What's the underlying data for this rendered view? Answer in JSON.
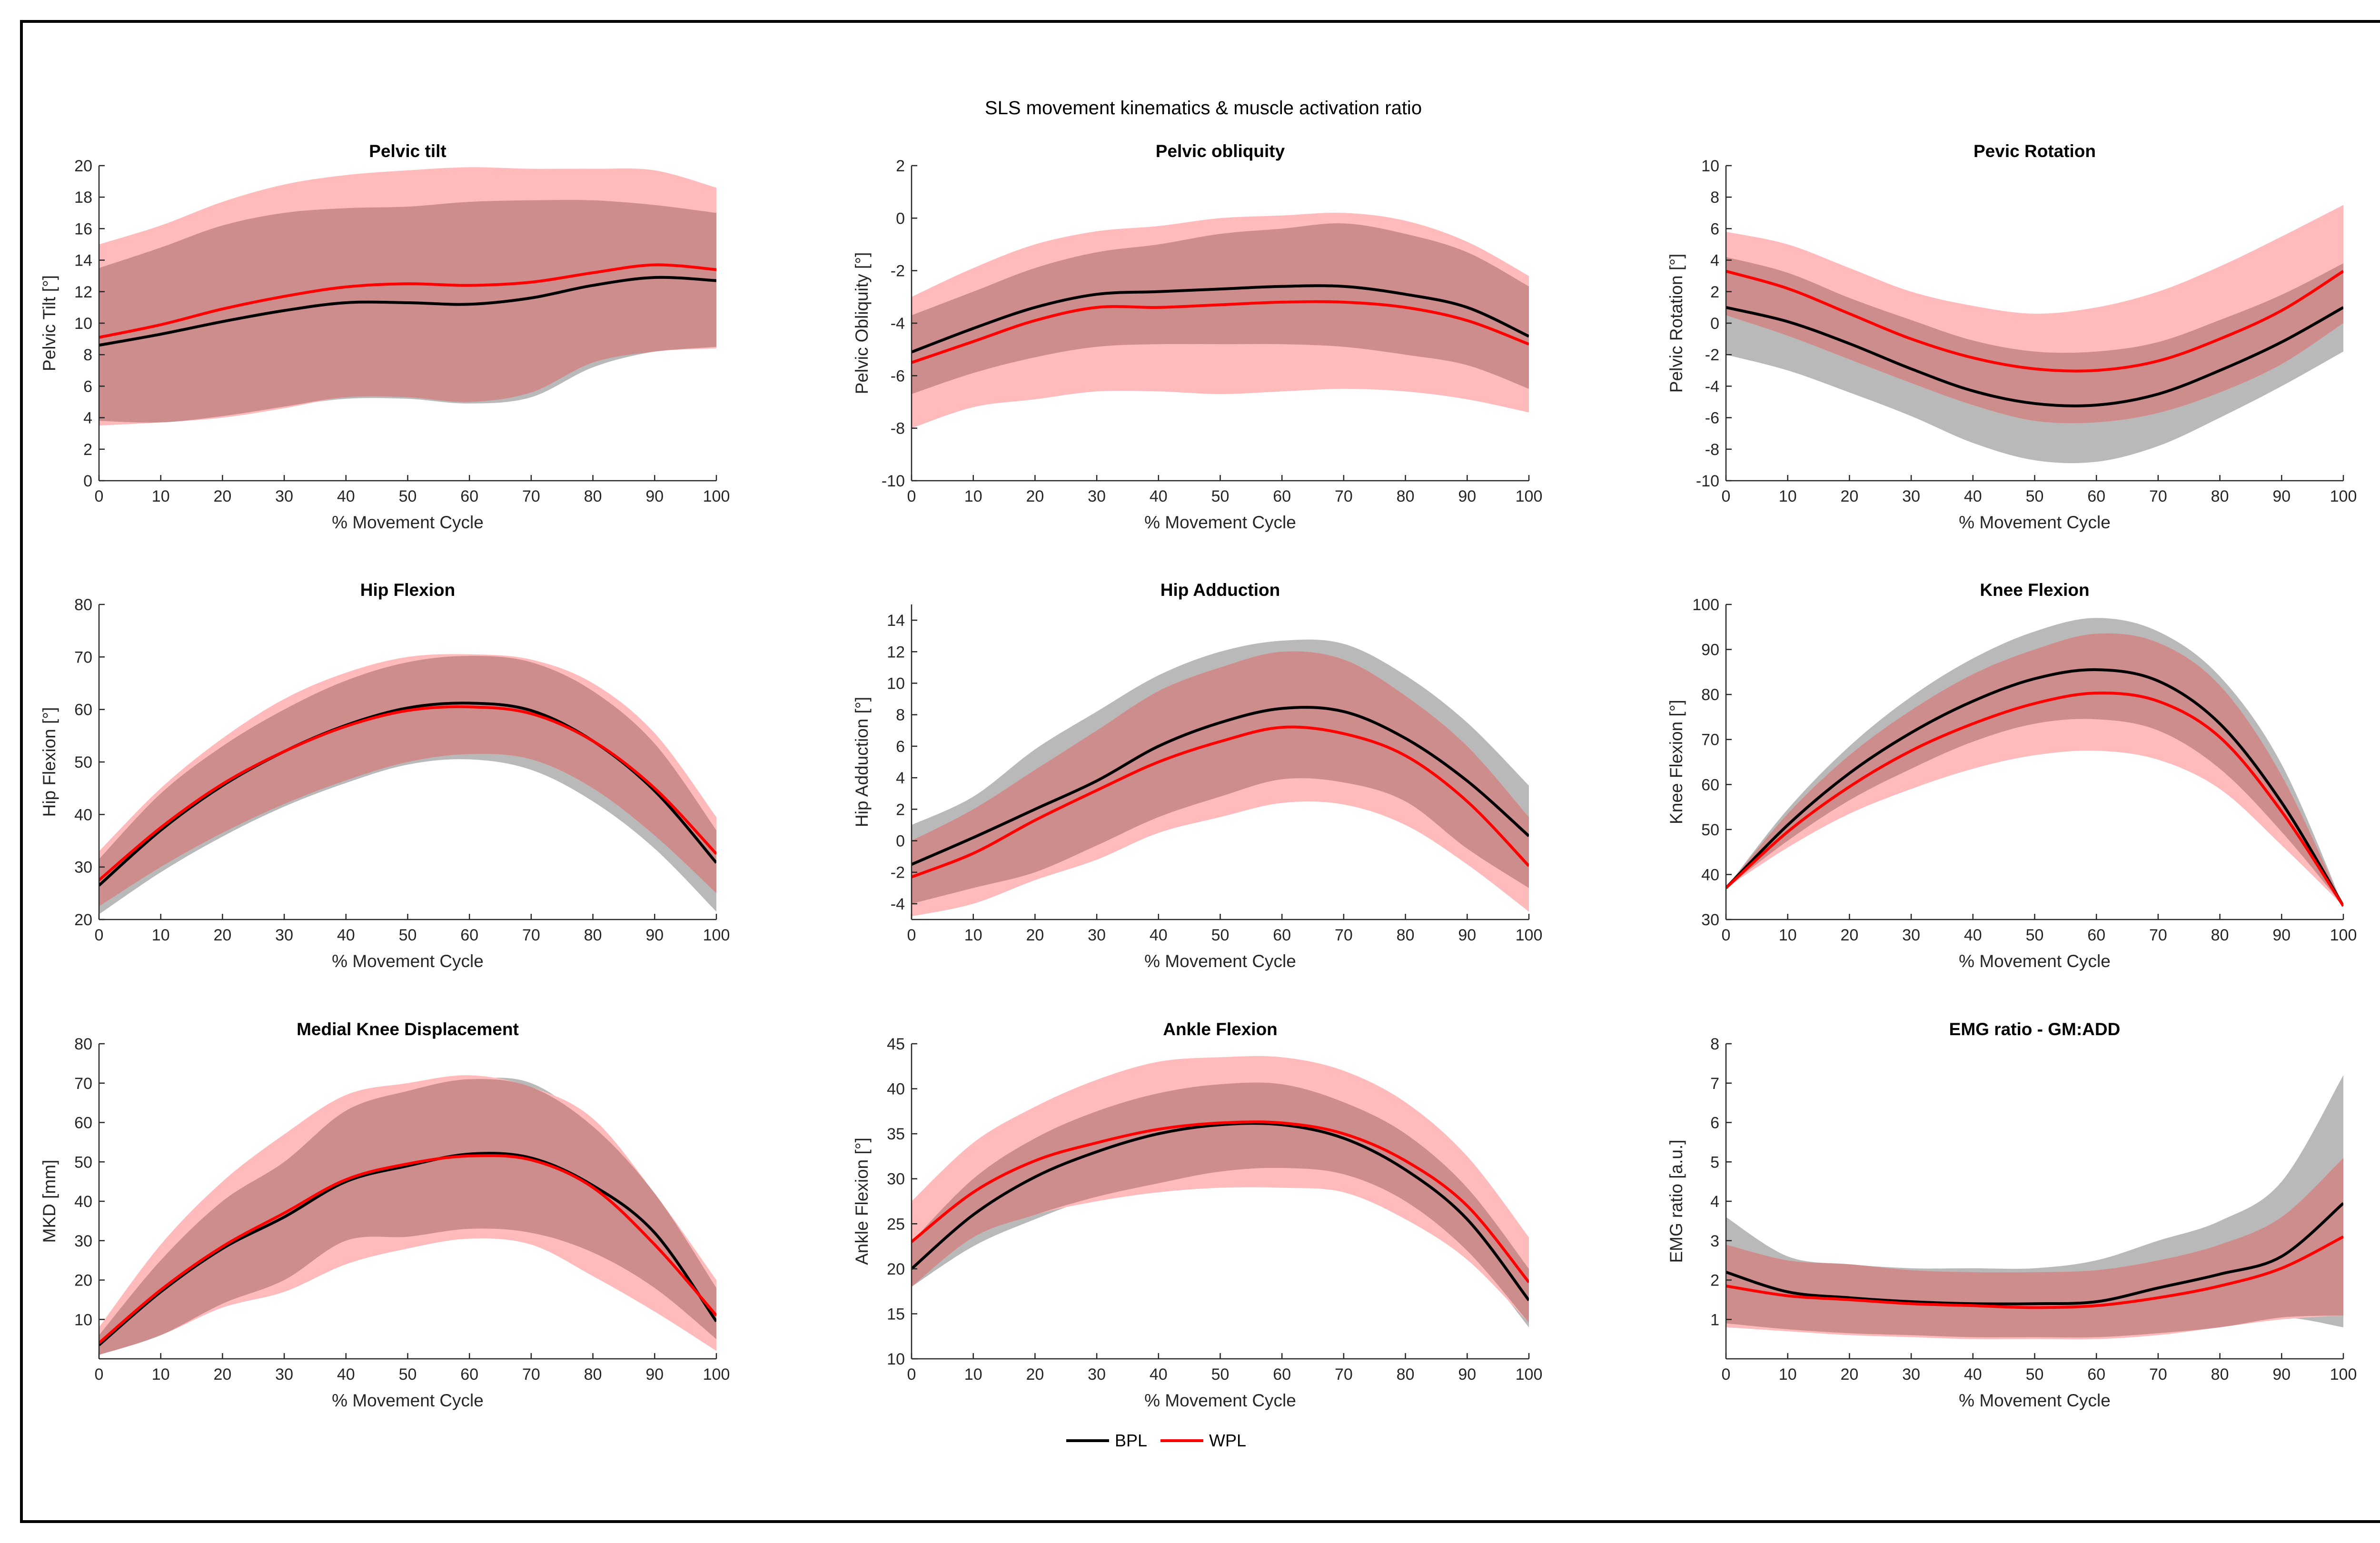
{
  "figure": {
    "title": "SLS movement kinematics & muscle activation ratio",
    "colors": {
      "bpl_line": "#000000",
      "wpl_line": "#ff0000",
      "bpl_band": "#b9b9b9",
      "wpl_band": "#ffbbbb",
      "overlap": "#cd8d8d"
    },
    "legend": [
      {
        "label": "BPL",
        "color": "#000000"
      },
      {
        "label": "WPL",
        "color": "#ff0000"
      }
    ]
  },
  "chart_data": [
    {
      "type": "line",
      "title": "Pelvic tilt",
      "xlabel": "% Movement Cycle",
      "ylabel": "Pelvic Tilt [°]",
      "xlim": [
        0,
        100
      ],
      "ylim": [
        0,
        20
      ],
      "xticks": [
        0,
        10,
        20,
        30,
        40,
        50,
        60,
        70,
        80,
        90,
        100
      ],
      "yticks": [
        0,
        2,
        4,
        6,
        8,
        10,
        12,
        14,
        16,
        18,
        20
      ],
      "x": [
        0,
        10,
        20,
        30,
        40,
        50,
        60,
        70,
        80,
        90,
        100
      ],
      "series": [
        {
          "name": "BPL",
          "mean": [
            8.6,
            9.3,
            10.1,
            10.8,
            11.3,
            11.3,
            11.2,
            11.6,
            12.4,
            12.9,
            12.7
          ],
          "lower": [
            3.8,
            3.7,
            4.1,
            4.7,
            5.2,
            5.2,
            4.9,
            5.3,
            7.2,
            8.2,
            8.5
          ],
          "upper": [
            13.5,
            14.8,
            16.2,
            17.0,
            17.3,
            17.4,
            17.7,
            17.8,
            17.8,
            17.5,
            17.0
          ]
        },
        {
          "name": "WPL",
          "mean": [
            9.1,
            9.9,
            10.9,
            11.7,
            12.3,
            12.5,
            12.4,
            12.6,
            13.2,
            13.7,
            13.4
          ],
          "lower": [
            3.5,
            3.7,
            4.0,
            4.6,
            5.3,
            5.3,
            5.0,
            5.6,
            7.5,
            8.2,
            8.4
          ],
          "upper": [
            15.0,
            16.2,
            17.7,
            18.8,
            19.4,
            19.7,
            19.9,
            19.8,
            19.8,
            19.7,
            18.6
          ]
        }
      ]
    },
    {
      "type": "line",
      "title": "Pelvic obliquity",
      "xlabel": "% Movement Cycle",
      "ylabel": "Pelvic Obliquity [°]",
      "xlim": [
        0,
        100
      ],
      "ylim": [
        -10,
        2
      ],
      "xticks": [
        0,
        10,
        20,
        30,
        40,
        50,
        60,
        70,
        80,
        90,
        100
      ],
      "yticks": [
        -10,
        -8,
        -6,
        -4,
        -2,
        0,
        2
      ],
      "x": [
        0,
        10,
        20,
        30,
        40,
        50,
        60,
        70,
        80,
        90,
        100
      ],
      "series": [
        {
          "name": "BPL",
          "mean": [
            -5.1,
            -4.2,
            -3.4,
            -2.9,
            -2.8,
            -2.7,
            -2.6,
            -2.6,
            -2.9,
            -3.4,
            -4.5
          ],
          "lower": [
            -6.7,
            -5.9,
            -5.3,
            -4.9,
            -4.8,
            -4.8,
            -4.8,
            -4.9,
            -5.2,
            -5.6,
            -6.5
          ],
          "upper": [
            -3.7,
            -2.8,
            -1.9,
            -1.3,
            -1.0,
            -0.6,
            -0.4,
            -0.2,
            -0.6,
            -1.3,
            -2.6
          ]
        },
        {
          "name": "WPL",
          "mean": [
            -5.5,
            -4.7,
            -3.9,
            -3.4,
            -3.4,
            -3.3,
            -3.2,
            -3.2,
            -3.4,
            -3.9,
            -4.8
          ],
          "lower": [
            -8.0,
            -7.2,
            -6.9,
            -6.6,
            -6.6,
            -6.7,
            -6.6,
            -6.5,
            -6.6,
            -6.9,
            -7.4
          ],
          "upper": [
            -3.0,
            -1.9,
            -1.0,
            -0.5,
            -0.3,
            0.0,
            0.1,
            0.2,
            -0.1,
            -0.9,
            -2.2
          ]
        }
      ]
    },
    {
      "type": "line",
      "title": "Pevic Rotation",
      "xlabel": "% Movement Cycle",
      "ylabel": "Pelvic Rotation [°]",
      "xlim": [
        0,
        100
      ],
      "ylim": [
        -10,
        10
      ],
      "xticks": [
        0,
        10,
        20,
        30,
        40,
        50,
        60,
        70,
        80,
        90,
        100
      ],
      "yticks": [
        -10,
        -8,
        -6,
        -4,
        -2,
        0,
        2,
        4,
        6,
        8,
        10
      ],
      "x": [
        0,
        10,
        20,
        30,
        40,
        50,
        60,
        70,
        80,
        90,
        100
      ],
      "series": [
        {
          "name": "BPL",
          "mean": [
            1.0,
            0.1,
            -1.3,
            -2.9,
            -4.3,
            -5.1,
            -5.2,
            -4.5,
            -3.0,
            -1.2,
            1.0
          ],
          "lower": [
            -2.0,
            -3.0,
            -4.4,
            -5.9,
            -7.6,
            -8.7,
            -8.8,
            -7.8,
            -6.0,
            -4.0,
            -1.8
          ],
          "upper": [
            4.2,
            3.2,
            1.6,
            0.2,
            -1.1,
            -1.8,
            -1.8,
            -1.2,
            0.2,
            1.8,
            3.8
          ]
        },
        {
          "name": "WPL",
          "mean": [
            3.3,
            2.2,
            0.6,
            -1.0,
            -2.2,
            -2.9,
            -3.0,
            -2.4,
            -1.0,
            0.8,
            3.3
          ],
          "lower": [
            0.5,
            -0.8,
            -2.3,
            -3.8,
            -5.2,
            -6.2,
            -6.3,
            -5.7,
            -4.4,
            -2.6,
            0.0
          ],
          "upper": [
            5.8,
            5.0,
            3.5,
            2.0,
            1.1,
            0.6,
            1.0,
            2.0,
            3.6,
            5.5,
            7.5
          ]
        }
      ]
    },
    {
      "type": "line",
      "title": "Hip Flexion",
      "xlabel": "% Movement Cycle",
      "ylabel": "Hip Flexion [°]",
      "xlim": [
        0,
        100
      ],
      "ylim": [
        20,
        80
      ],
      "xticks": [
        0,
        10,
        20,
        30,
        40,
        50,
        60,
        70,
        80,
        90,
        100
      ],
      "yticks": [
        20,
        30,
        40,
        50,
        60,
        70,
        80
      ],
      "x": [
        0,
        10,
        20,
        30,
        40,
        50,
        60,
        70,
        80,
        90,
        100
      ],
      "series": [
        {
          "name": "BPL",
          "mean": [
            26.5,
            37.0,
            45.5,
            52.0,
            57.0,
            60.3,
            61.2,
            59.8,
            54.0,
            44.5,
            30.8
          ],
          "lower": [
            21.0,
            29.0,
            35.8,
            41.5,
            46.0,
            49.5,
            50.5,
            48.5,
            42.5,
            33.5,
            21.5
          ],
          "upper": [
            31.5,
            44.0,
            53.0,
            60.0,
            65.5,
            69.0,
            70.2,
            69.0,
            63.5,
            53.5,
            37.0
          ]
        },
        {
          "name": "WPL",
          "mean": [
            27.5,
            37.5,
            45.8,
            52.0,
            56.8,
            59.8,
            60.5,
            59.2,
            54.0,
            45.0,
            32.5
          ],
          "lower": [
            22.5,
            30.0,
            36.5,
            42.0,
            46.5,
            50.0,
            51.5,
            50.5,
            45.0,
            36.0,
            25.0
          ],
          "upper": [
            33.0,
            45.0,
            54.5,
            62.0,
            67.0,
            70.0,
            70.5,
            69.5,
            65.0,
            55.5,
            39.5
          ]
        }
      ]
    },
    {
      "type": "line",
      "title": "Hip Adduction",
      "xlabel": "% Movement Cycle",
      "ylabel": "Hip Adduction [°]",
      "xlim": [
        0,
        100
      ],
      "ylim": [
        -5,
        15
      ],
      "xticks": [
        0,
        10,
        20,
        30,
        40,
        50,
        60,
        70,
        80,
        90,
        100
      ],
      "yticks": [
        -4,
        -2,
        0,
        2,
        4,
        6,
        8,
        10,
        12,
        14
      ],
      "x": [
        0,
        10,
        20,
        30,
        40,
        50,
        60,
        70,
        80,
        90,
        100
      ],
      "series": [
        {
          "name": "BPL",
          "mean": [
            -1.5,
            0.2,
            2.0,
            3.8,
            6.0,
            7.5,
            8.4,
            8.2,
            6.5,
            3.8,
            0.3
          ],
          "lower": [
            -4.0,
            -3.0,
            -2.0,
            -0.3,
            1.5,
            2.8,
            3.9,
            3.7,
            2.5,
            -0.5,
            -3.0
          ],
          "upper": [
            1.0,
            2.8,
            5.8,
            8.2,
            10.5,
            12.0,
            12.7,
            12.5,
            10.5,
            7.5,
            3.5
          ]
        },
        {
          "name": "WPL",
          "mean": [
            -2.3,
            -0.8,
            1.3,
            3.2,
            5.0,
            6.3,
            7.2,
            6.8,
            5.4,
            2.5,
            -1.6
          ],
          "lower": [
            -4.8,
            -4.0,
            -2.5,
            -1.2,
            0.5,
            1.5,
            2.4,
            2.3,
            1.0,
            -1.5,
            -4.5
          ],
          "upper": [
            0.0,
            2.0,
            4.5,
            7.0,
            9.5,
            11.0,
            12.0,
            11.5,
            9.2,
            6.0,
            1.5
          ]
        }
      ]
    },
    {
      "type": "line",
      "title": "Knee Flexion",
      "xlabel": "% Movement Cycle",
      "ylabel": "Knee Flexion [°]",
      "xlim": [
        0,
        100
      ],
      "ylim": [
        30,
        100
      ],
      "xticks": [
        0,
        10,
        20,
        30,
        40,
        50,
        60,
        70,
        80,
        90,
        100
      ],
      "yticks": [
        30,
        40,
        50,
        60,
        70,
        80,
        90,
        100
      ],
      "x": [
        0,
        10,
        20,
        30,
        40,
        50,
        60,
        70,
        80,
        90,
        100
      ],
      "series": [
        {
          "name": "BPL",
          "mean": [
            37.0,
            51.0,
            62.5,
            71.5,
            78.5,
            83.5,
            85.5,
            83.0,
            73.5,
            56.0,
            33.0
          ],
          "lower": [
            37.0,
            47.5,
            56.5,
            63.5,
            69.5,
            73.5,
            74.5,
            72.0,
            63.5,
            49.5,
            33.0
          ],
          "upper": [
            37.0,
            54.5,
            68.5,
            79.5,
            88.0,
            94.0,
            97.0,
            94.0,
            84.0,
            64.5,
            33.0
          ]
        },
        {
          "name": "WPL",
          "mean": [
            37.0,
            49.5,
            59.5,
            67.5,
            73.5,
            78.0,
            80.3,
            78.5,
            70.5,
            54.0,
            33.0
          ],
          "lower": [
            37.0,
            46.0,
            53.5,
            59.0,
            63.5,
            66.5,
            67.5,
            65.5,
            59.0,
            46.5,
            33.0
          ],
          "upper": [
            37.0,
            53.5,
            66.5,
            76.5,
            84.5,
            90.0,
            93.5,
            91.5,
            82.0,
            62.0,
            33.0
          ]
        }
      ]
    },
    {
      "type": "line",
      "title": "Medial Knee Displacement",
      "xlabel": "% Movement Cycle",
      "ylabel": "MKD [mm]",
      "xlim": [
        0,
        100
      ],
      "ylim": [
        0,
        80
      ],
      "xticks": [
        0,
        10,
        20,
        30,
        40,
        50,
        60,
        70,
        80,
        90,
        100
      ],
      "yticks": [
        10,
        20,
        30,
        40,
        50,
        60,
        70,
        80
      ],
      "x": [
        0,
        10,
        20,
        30,
        40,
        50,
        60,
        70,
        80,
        90,
        100
      ],
      "series": [
        {
          "name": "BPL",
          "mean": [
            3.5,
            17.0,
            28.0,
            36.0,
            45.0,
            49.0,
            52.0,
            51.0,
            44.0,
            32.0,
            9.5
          ],
          "lower": [
            1.0,
            6.0,
            14.0,
            20.0,
            30.0,
            31.0,
            33.0,
            32.0,
            27.0,
            18.0,
            5.0
          ],
          "upper": [
            6.0,
            25.0,
            40.0,
            50.0,
            63.0,
            68.0,
            71.0,
            70.0,
            59.0,
            42.0,
            18.0
          ]
        },
        {
          "name": "WPL",
          "mean": [
            4.0,
            17.5,
            28.5,
            37.0,
            45.5,
            49.5,
            51.5,
            50.5,
            43.5,
            29.0,
            11.0
          ],
          "lower": [
            1.0,
            6.0,
            13.0,
            17.0,
            24.0,
            28.0,
            30.5,
            29.0,
            21.0,
            12.0,
            2.0
          ],
          "upper": [
            8.0,
            29.0,
            45.0,
            57.0,
            67.0,
            70.0,
            72.0,
            69.0,
            61.0,
            42.0,
            20.0
          ]
        }
      ]
    },
    {
      "type": "line",
      "title": "Ankle Flexion",
      "xlabel": "% Movement Cycle",
      "ylabel": "Ankle Flexion [°]",
      "xlim": [
        0,
        100
      ],
      "ylim": [
        10,
        45
      ],
      "xticks": [
        0,
        10,
        20,
        30,
        40,
        50,
        60,
        70,
        80,
        90,
        100
      ],
      "yticks": [
        10,
        15,
        20,
        25,
        30,
        35,
        40,
        45
      ],
      "x": [
        0,
        10,
        20,
        30,
        40,
        50,
        60,
        70,
        80,
        90,
        100
      ],
      "series": [
        {
          "name": "BPL",
          "mean": [
            20.0,
            26.0,
            30.2,
            33.0,
            35.0,
            36.0,
            36.0,
            34.5,
            31.0,
            25.5,
            16.5
          ],
          "lower": [
            18.0,
            22.5,
            25.5,
            28.0,
            29.5,
            30.8,
            31.2,
            30.5,
            27.5,
            22.0,
            13.5
          ],
          "upper": [
            23.0,
            30.0,
            34.5,
            37.5,
            39.5,
            40.5,
            40.5,
            38.5,
            35.0,
            29.0,
            20.0
          ]
        },
        {
          "name": "WPL",
          "mean": [
            23.0,
            28.5,
            32.0,
            34.0,
            35.5,
            36.2,
            36.2,
            35.0,
            32.0,
            27.0,
            18.5
          ],
          "lower": [
            18.0,
            23.5,
            26.0,
            27.5,
            28.5,
            29.0,
            29.0,
            28.5,
            25.5,
            21.0,
            14.0
          ],
          "upper": [
            27.5,
            34.0,
            38.0,
            41.0,
            43.0,
            43.5,
            43.5,
            42.0,
            38.5,
            32.5,
            23.5
          ]
        }
      ]
    },
    {
      "type": "line",
      "title": "EMG ratio - GM:ADD",
      "xlabel": "% Movement Cycle",
      "ylabel": "EMG ratio [a.u.]",
      "xlim": [
        0,
        100
      ],
      "ylim": [
        0,
        8
      ],
      "xticks": [
        0,
        10,
        20,
        30,
        40,
        50,
        60,
        70,
        80,
        90,
        100
      ],
      "yticks": [
        1,
        2,
        3,
        4,
        5,
        6,
        7,
        8
      ],
      "x": [
        0,
        10,
        20,
        30,
        40,
        50,
        60,
        70,
        80,
        90,
        100
      ],
      "series": [
        {
          "name": "BPL",
          "mean": [
            2.2,
            1.7,
            1.55,
            1.45,
            1.4,
            1.4,
            1.45,
            1.8,
            2.15,
            2.6,
            3.95
          ],
          "lower": [
            0.9,
            0.75,
            0.65,
            0.6,
            0.55,
            0.55,
            0.55,
            0.65,
            0.8,
            1.05,
            0.8
          ],
          "upper": [
            3.6,
            2.6,
            2.4,
            2.3,
            2.3,
            2.3,
            2.5,
            3.0,
            3.5,
            4.5,
            7.2
          ]
        },
        {
          "name": "WPL",
          "mean": [
            1.85,
            1.6,
            1.5,
            1.4,
            1.35,
            1.3,
            1.35,
            1.55,
            1.85,
            2.3,
            3.1
          ],
          "lower": [
            0.8,
            0.7,
            0.6,
            0.55,
            0.5,
            0.5,
            0.5,
            0.6,
            0.8,
            1.0,
            1.1
          ],
          "upper": [
            2.9,
            2.5,
            2.4,
            2.25,
            2.2,
            2.2,
            2.25,
            2.5,
            2.9,
            3.6,
            5.1
          ]
        }
      ]
    }
  ]
}
